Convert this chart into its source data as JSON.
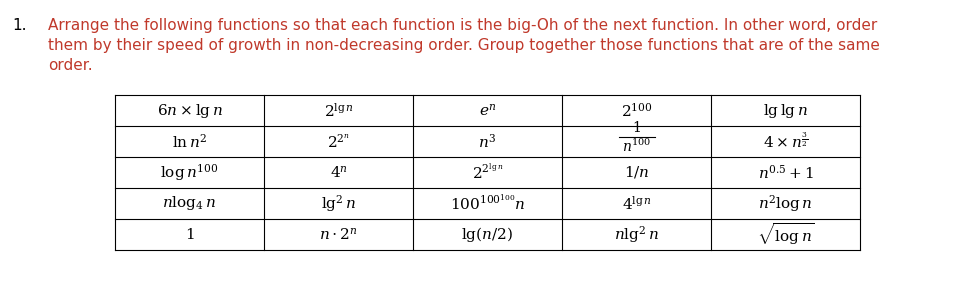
{
  "bg_color": "#ffffff",
  "title_color": "#C0392B",
  "text_color": "#000000",
  "title_lines": [
    "Arrange the following functions so that each function is the big-Oh of the next function. In other word, order",
    "them by their speed of growth in non-decreasing order. Group together those functions that are of the same",
    "order."
  ],
  "cells": [
    [
      "$6n \\times \\lg n$",
      "$2^{\\lg n}$",
      "$e^{n}$",
      "$2^{100}$",
      "$\\lg\\lg n$"
    ],
    [
      "$\\ln n^{2}$",
      "$2^{2^{n}}$",
      "$n^{3}$",
      "frac_1_n100",
      "frac_4xn_3_2"
    ],
    [
      "$\\log n^{100}$",
      "$4^{n}$",
      "$2^{2^{\\lg n}}$",
      "$1/n$",
      "$n^{0.5}+1$"
    ],
    [
      "$n\\log_{4} n$",
      "$\\lg^{2} n$",
      "$100^{100^{100}}n$",
      "$4^{\\lg n}$",
      "$n^{2}\\log n$"
    ],
    [
      "$1$",
      "$n \\cdot 2^{n}$",
      "$\\lg(n/2)$",
      "$n\\lg^{2} n$",
      "$\\sqrt{\\log n}$"
    ]
  ],
  "n_rows": 5,
  "n_cols": 5,
  "fontsize": 11,
  "title_fontsize": 11,
  "number_fontsize": 11
}
